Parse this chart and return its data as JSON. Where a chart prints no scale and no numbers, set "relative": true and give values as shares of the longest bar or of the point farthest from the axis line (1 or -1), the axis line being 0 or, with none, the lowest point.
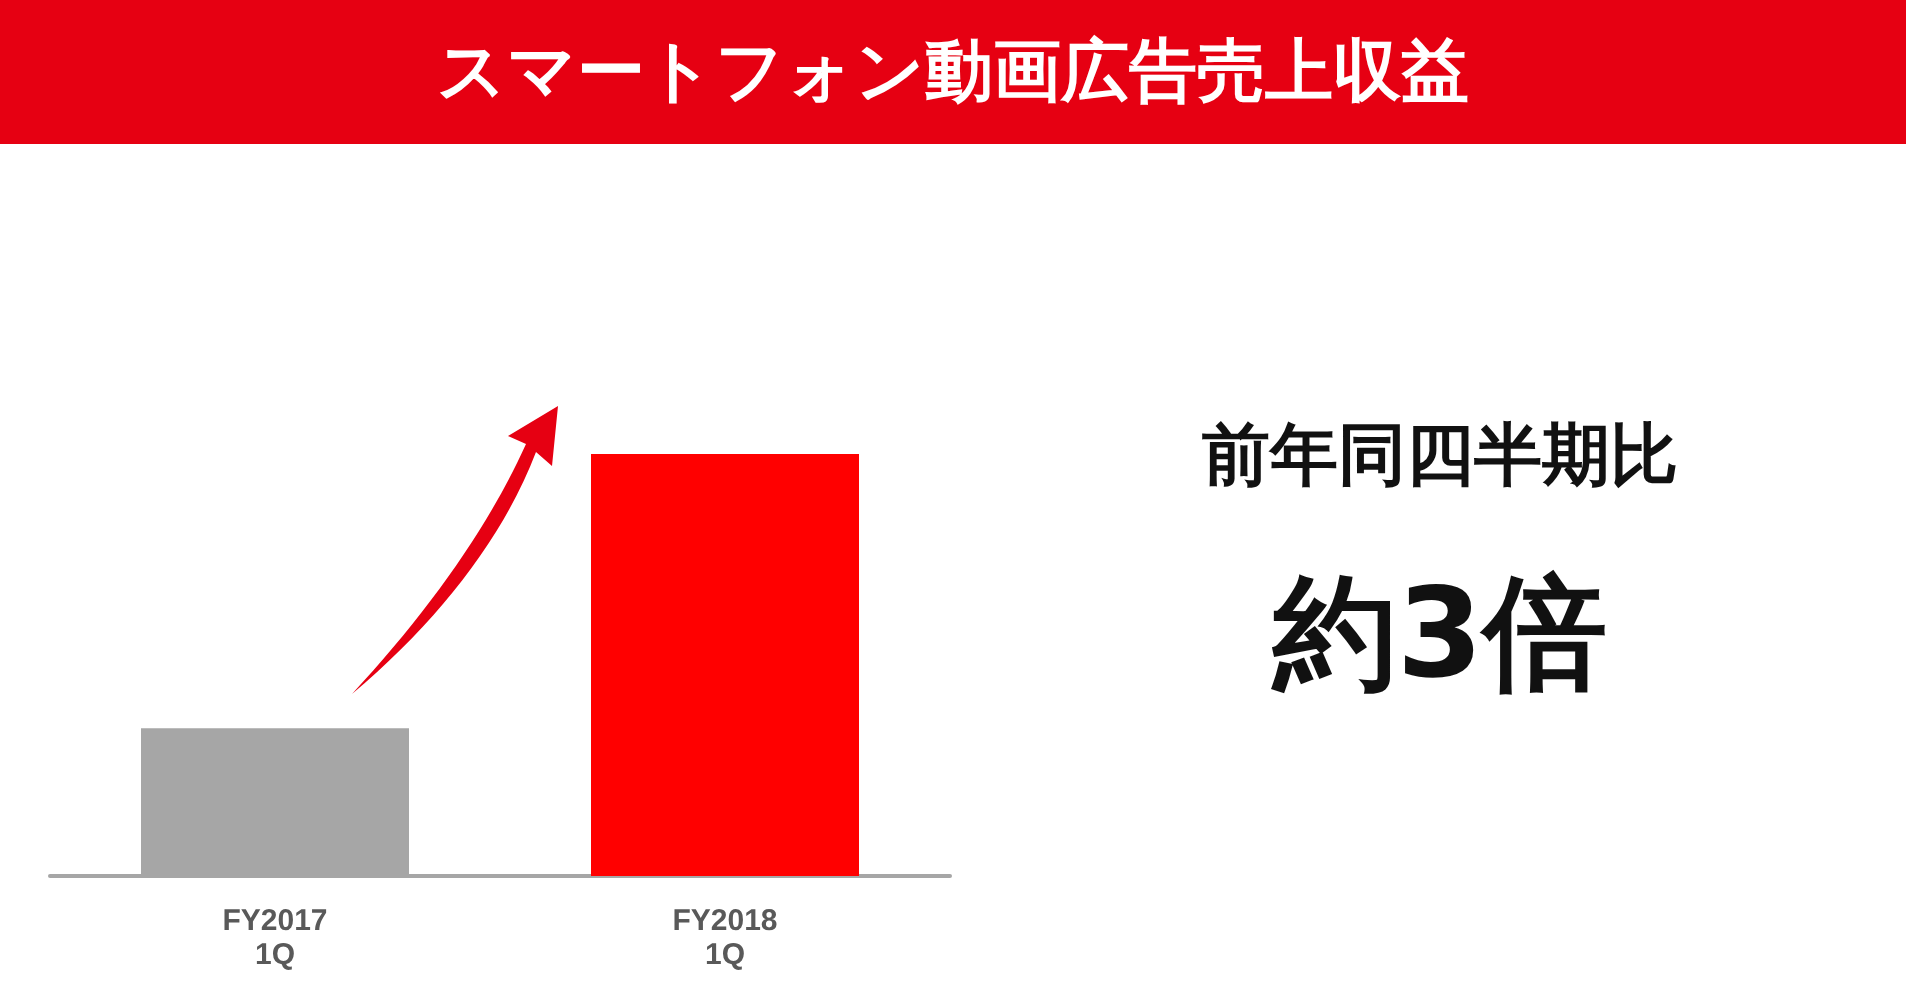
{
  "chart_data": {
    "type": "bar",
    "title": "スマートフォン動画広告売上収益",
    "categories": [
      "FY2017\n1Q",
      "FY2018\n1Q"
    ],
    "values": [
      0.35,
      1
    ],
    "colors": [
      "#a6a6a6",
      "#ff0000"
    ],
    "relative": true,
    "annotations": [
      "前年同四半期比",
      "約3倍"
    ]
  }
}
